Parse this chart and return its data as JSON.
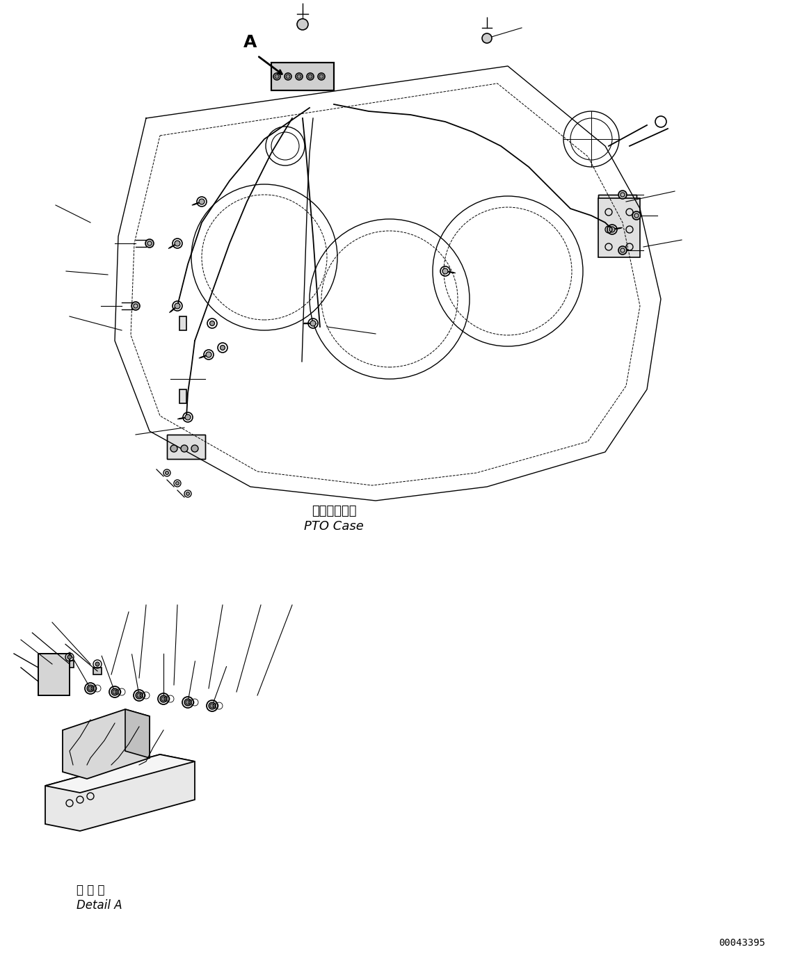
{
  "bg_color": "#ffffff",
  "line_color": "#000000",
  "line_width": 1.0,
  "title_text1": "ＰＴＯケース",
  "title_text2": "PTO Case",
  "detail_title1": "Ａ 詳 細",
  "detail_title2": "Detail A",
  "label_A": "A",
  "ref_code": "00043395",
  "fig_width": 11.63,
  "fig_height": 13.82
}
